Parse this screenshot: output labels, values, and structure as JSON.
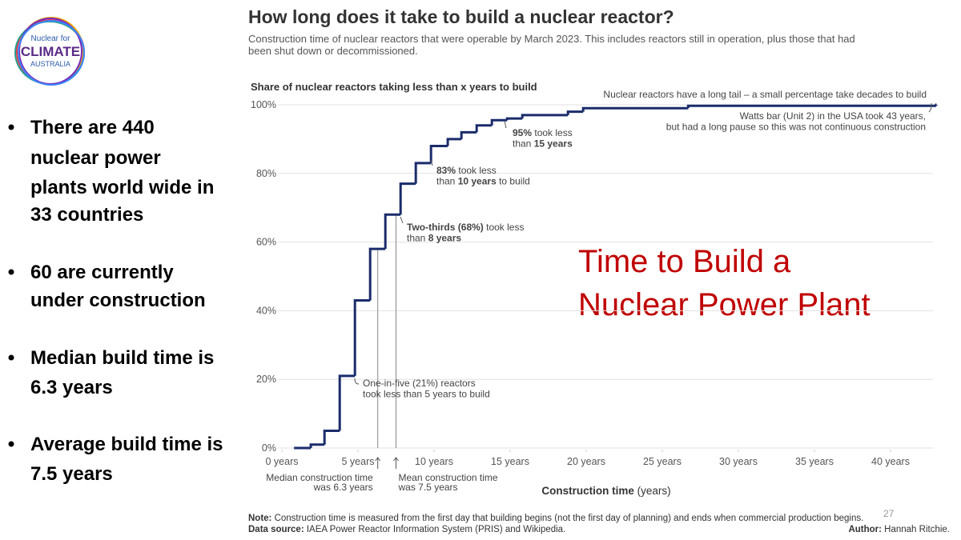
{
  "slide": {
    "logo": [
      "Nuclear for",
      "CLIMATE",
      "AUSTRALIA"
    ],
    "bullets": [
      [
        "There are 440",
        "nuclear power",
        "plants world wide in",
        "33 countries"
      ],
      [
        "60 are currently",
        "under construction"
      ],
      [
        "Median build time is",
        "6.3 years"
      ],
      [
        "Average build time is",
        "7.5 years"
      ]
    ],
    "overlay": [
      "Time to Build a",
      "Nuclear Power Plant"
    ],
    "page_number": "27"
  },
  "chart_data": {
    "type": "step",
    "title": "How long does it take to build a nuclear reactor?",
    "subtitle": [
      "Construction time of nuclear reactors that were operable by March 2023. This includes reactors still in operation, plus those that had",
      "been shut down or decommissioned."
    ],
    "y_label": "Share of nuclear reactors taking less than x years to build",
    "x_label": [
      {
        "text": "Construction time",
        "bold": true
      },
      {
        "text": " (years)",
        "bold": false
      }
    ],
    "x": [
      0.8,
      1.9,
      2.8,
      3.8,
      4.8,
      5.8,
      6.8,
      7.8,
      8.8,
      9.8,
      10.9,
      11.8,
      12.8,
      13.8,
      14.8,
      15.8,
      18.8,
      19.8,
      26.7,
      43
    ],
    "series": [
      {
        "name": "Share of nuclear reactors",
        "color": "#1b2c6b",
        "values": [
          0,
          1,
          5,
          21,
          43,
          58,
          68,
          77,
          83,
          88,
          90,
          92,
          94,
          95.5,
          96,
          97,
          98,
          99,
          99.7,
          100
        ]
      }
    ],
    "xlim": [
      0,
      43
    ],
    "ylim": [
      0,
      100
    ],
    "xticks": [
      {
        "value": 0,
        "label": "0 years"
      },
      {
        "value": 5,
        "label": "5 years"
      },
      {
        "value": 10,
        "label": "10 years"
      },
      {
        "value": 15,
        "label": "15 years"
      },
      {
        "value": 20,
        "label": "20 years"
      },
      {
        "value": 25,
        "label": "25 years"
      },
      {
        "value": 30,
        "label": "30 years"
      },
      {
        "value": 35,
        "label": "35 years"
      },
      {
        "value": 40,
        "label": "40 years"
      }
    ],
    "yticks": [
      {
        "value": 0,
        "label": "0%"
      },
      {
        "value": 20,
        "label": "20%"
      },
      {
        "value": 40,
        "label": "40%"
      },
      {
        "value": 60,
        "label": "60%"
      },
      {
        "value": 80,
        "label": "80%"
      },
      {
        "value": 100,
        "label": "100%"
      }
    ],
    "grid": true,
    "markers": [
      {
        "value": 6.3,
        "lines": [
          "Median construction time",
          "was 6.3 years"
        ]
      },
      {
        "value": 7.5,
        "lines": [
          "Mean construction time",
          "was 7.5 years"
        ]
      }
    ],
    "annotations": [
      {
        "lines": [
          [
            {
              "text": "Nuclear reactors have a long tail – a small percentage take decades to build",
              "bold": false
            }
          ]
        ]
      },
      {
        "lines": [
          [
            {
              "text": "Watts bar (Unit 2) in the USA took 43 years,",
              "bold": false
            }
          ],
          [
            {
              "text": "but had a long pause so this was not continuous construction",
              "bold": false
            }
          ]
        ]
      },
      {
        "lines": [
          [
            {
              "text": "95%",
              "bold": true
            },
            {
              "text": " took less",
              "bold": false
            }
          ],
          [
            {
              "text": "than ",
              "bold": false
            },
            {
              "text": "15 years",
              "bold": true
            }
          ]
        ]
      },
      {
        "lines": [
          [
            {
              "text": "83%",
              "bold": true
            },
            {
              "text": " took less",
              "bold": false
            }
          ],
          [
            {
              "text": "than ",
              "bold": false
            },
            {
              "text": "10 years",
              "bold": true
            },
            {
              "text": " to build",
              "bold": false
            }
          ]
        ]
      },
      {
        "lines": [
          [
            {
              "text": "Two-thirds (68%)",
              "bold": true
            },
            {
              "text": " took less",
              "bold": false
            }
          ],
          [
            {
              "text": "than ",
              "bold": false
            },
            {
              "text": "8 years",
              "bold": true
            }
          ]
        ]
      },
      {
        "lines": [
          [
            {
              "text": "One-in-five (21%) reactors",
              "bold": false
            }
          ],
          [
            {
              "text": "took less than 5 years to build",
              "bold": false
            }
          ]
        ]
      }
    ],
    "note": [
      {
        "text": "Note:",
        "bold": true
      },
      {
        "text": " Construction time is measured from the first day that building begins (not the first day of planning) and ends when commercial production begins.",
        "bold": false
      }
    ],
    "source": [
      {
        "text": "Data source:",
        "bold": true
      },
      {
        "text": " IAEA Power Reactor Information System (PRIS) and Wikipedia.",
        "bold": false
      }
    ],
    "author": [
      {
        "text": "Author:",
        "bold": true
      },
      {
        "text": " Hannah Ritchie.",
        "bold": false
      }
    ]
  }
}
